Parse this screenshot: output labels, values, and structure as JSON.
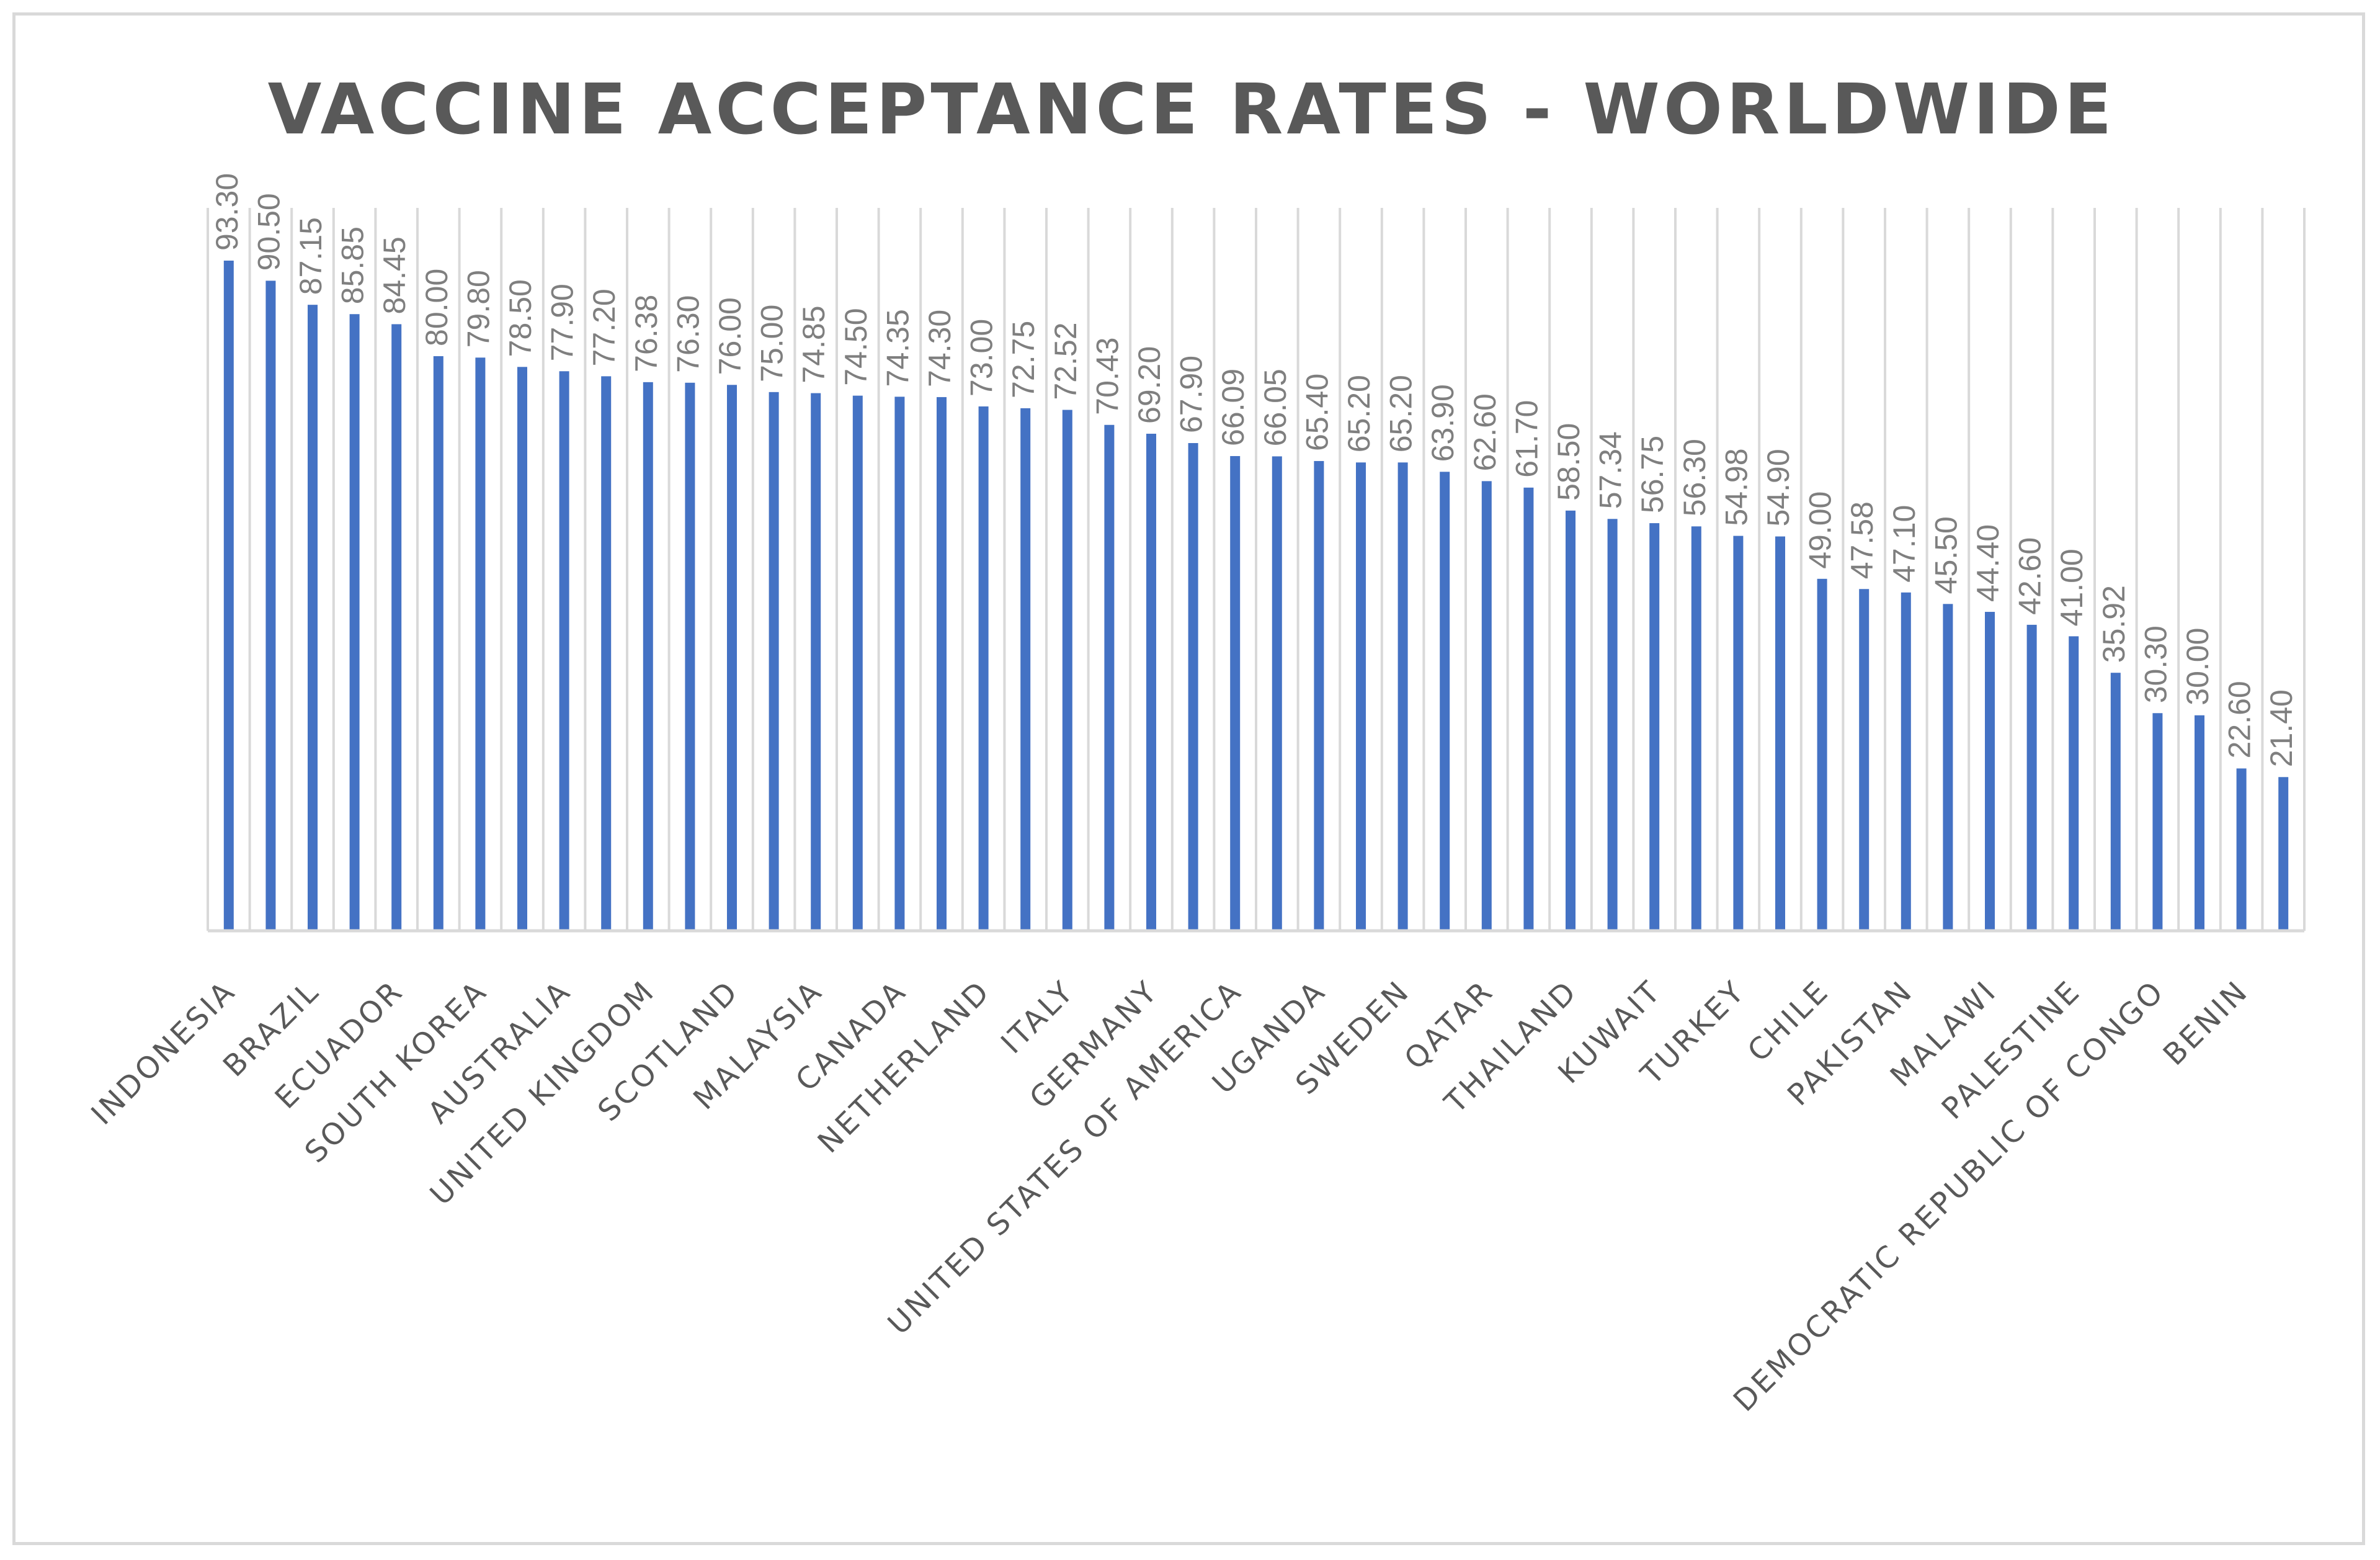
{
  "chart_data": {
    "type": "bar",
    "title": "VACCINE ACCEPTANCE RATES - WORLDWIDE",
    "xlabel": "",
    "ylabel": "",
    "ylim": [
      0,
      100
    ],
    "grid": true,
    "categories": [
      "INDONESIA",
      "",
      "BRAZIL",
      "",
      "ECUADOR",
      "",
      "SOUTH KOREA",
      "",
      "AUSTRALIA",
      "",
      "UNITED KINGDOM",
      "",
      "SCOTLAND",
      "",
      "MALAYSIA",
      "",
      "CANADA",
      "",
      "NETHERLAND",
      "",
      "ITALY",
      "",
      "GERMANY",
      "",
      "UNITED STATES OF AMERICA",
      "",
      "UGANDA",
      "",
      "SWEDEN",
      "",
      "QATAR",
      "",
      "THAILAND",
      "",
      "KUWAIT",
      "",
      "TURKEY",
      "",
      "CHILE",
      "",
      "PAKISTAN",
      "",
      "MALAWI",
      "",
      "PALESTINE",
      "",
      "DEMOCRATIC REPUBLIC OF CONGO",
      "",
      "BENIN",
      ""
    ],
    "values": [
      93.3,
      90.5,
      87.15,
      85.85,
      84.45,
      80.0,
      79.8,
      78.5,
      77.9,
      77.2,
      76.38,
      76.3,
      76.0,
      75.0,
      74.85,
      74.5,
      74.35,
      74.3,
      73.0,
      72.75,
      72.52,
      70.43,
      69.2,
      67.9,
      66.09,
      66.05,
      65.4,
      65.2,
      65.2,
      63.9,
      62.6,
      61.7,
      58.5,
      57.34,
      56.75,
      56.3,
      54.98,
      54.9,
      49.0,
      47.58,
      47.1,
      45.5,
      44.4,
      42.6,
      41.0,
      35.92,
      30.3,
      30.0,
      22.6,
      21.4
    ],
    "value_labels": [
      "93.30",
      "90.50",
      "87.15",
      "85.85",
      "84.45",
      "80.00",
      "79.80",
      "78.50",
      "77.90",
      "77.20",
      "76.38",
      "76.30",
      "76.00",
      "75.00",
      "74.85",
      "74.50",
      "74.35",
      "74.30",
      "73.00",
      "72.75",
      "72.52",
      "70.43",
      "69.20",
      "67.90",
      "66.09",
      "66.05",
      "65.40",
      "65.20",
      "65.20",
      "63.90",
      "62.60",
      "61.70",
      "58.50",
      "57.34",
      "56.75",
      "56.30",
      "54.98",
      "54.90",
      "49.00",
      "47.58",
      "47.10",
      "45.50",
      "44.40",
      "42.60",
      "41.00",
      "35.92",
      "30.30",
      "30.00",
      "22.60",
      "21.40"
    ],
    "colors": {
      "bar": "#4472c4",
      "grid": "#d9d9d9",
      "title": "#595959",
      "labels": "#7f7f7f"
    }
  }
}
